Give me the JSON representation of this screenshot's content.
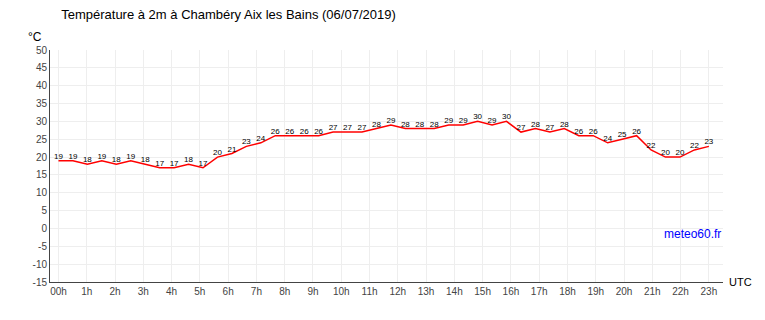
{
  "chart_data": {
    "type": "line",
    "title": "Température à 2m à Chambéry Aix les Bains (06/07/2019)",
    "ylabel": "°C",
    "xlabel": "UTC",
    "annotations": [
      {
        "text": "meteo60.fr",
        "color": "#0000ff"
      }
    ],
    "x": [
      0,
      0.5111111111,
      1.0222222222,
      1.5333333333,
      2.0444444444,
      2.5555555556,
      3.0666666667,
      3.5777777778,
      4.0888888889,
      4.6,
      5.1111111111,
      5.6222222222,
      6.1333333333,
      6.6444444444,
      7.1555555556,
      7.6666666667,
      8.1777777778,
      8.6888888889,
      9.2,
      9.7111111111,
      10.2222222222,
      10.7333333333,
      11.2444444444,
      11.7555555556,
      12.2666666667,
      12.7777777778,
      13.2888888889,
      13.8,
      14.3111111111,
      14.8222222222,
      15.3333333333,
      15.8444444444,
      16.3555555556,
      16.8666666667,
      17.3777777778,
      17.8888888889,
      18.4,
      18.9111111111,
      19.4222222222,
      19.9333333333,
      20.4444444444,
      20.9555555556,
      21.4666666667,
      21.9777777778,
      22.4888888889,
      23
    ],
    "values": [
      19,
      19,
      18,
      19,
      18,
      19,
      18,
      17,
      17,
      18,
      17,
      20,
      21,
      23,
      24,
      26,
      26,
      26,
      26,
      27,
      27,
      27,
      28,
      29,
      28,
      28,
      28,
      29,
      29,
      30,
      29,
      30,
      27,
      28,
      27,
      28,
      26,
      26,
      24,
      25,
      26,
      22,
      20,
      20,
      22,
      23
    ],
    "color": "#ff0000",
    "data_labels": true,
    "grid": true,
    "xlim": [
      -0.3,
      23.5
    ],
    "xticks": [
      {
        "value": 0,
        "label": "00h"
      },
      {
        "value": 1,
        "label": "1h"
      },
      {
        "value": 2,
        "label": "2h"
      },
      {
        "value": 3,
        "label": "3h"
      },
      {
        "value": 4,
        "label": "4h"
      },
      {
        "value": 5,
        "label": "5h"
      },
      {
        "value": 6,
        "label": "6h"
      },
      {
        "value": 7,
        "label": "7h"
      },
      {
        "value": 8,
        "label": "8h"
      },
      {
        "value": 9,
        "label": "9h"
      },
      {
        "value": 10,
        "label": "10h"
      },
      {
        "value": 11,
        "label": "11h"
      },
      {
        "value": 12,
        "label": "12h"
      },
      {
        "value": 13,
        "label": "13h"
      },
      {
        "value": 14,
        "label": "14h"
      },
      {
        "value": 15,
        "label": "15h"
      },
      {
        "value": 16,
        "label": "16h"
      },
      {
        "value": 17,
        "label": "17h"
      },
      {
        "value": 18,
        "label": "18h"
      },
      {
        "value": 19,
        "label": "19h"
      },
      {
        "value": 20,
        "label": "20h"
      },
      {
        "value": 21,
        "label": "21h"
      },
      {
        "value": 22,
        "label": "22h"
      },
      {
        "value": 23,
        "label": "23h"
      }
    ],
    "ylim": [
      -15,
      50
    ],
    "yticks": [
      -15,
      -10,
      -5,
      0,
      5,
      10,
      15,
      20,
      25,
      30,
      35,
      40,
      45,
      50
    ]
  }
}
